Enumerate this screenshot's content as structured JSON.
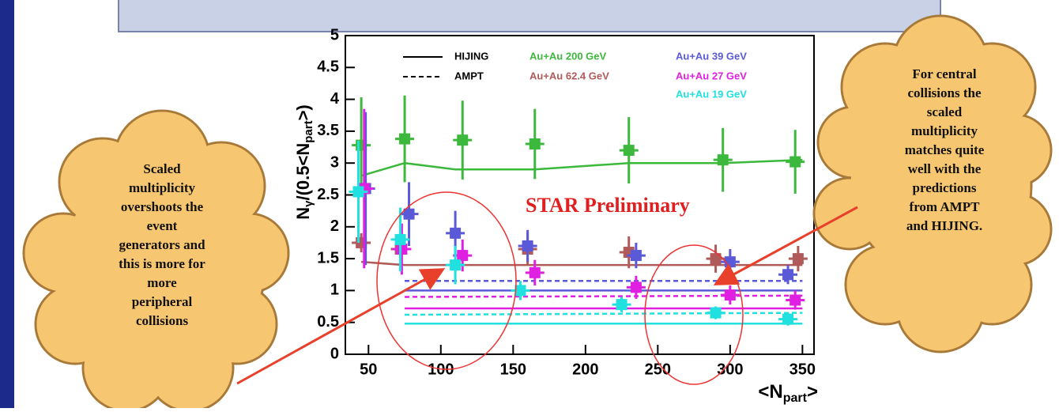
{
  "chart_data": {
    "type": "errorbar",
    "y_label": [
      "N",
      "γ",
      "/(0.5<N",
      "part",
      ">)"
    ],
    "x_label": [
      "<N",
      "part",
      ">"
    ],
    "xlim": [
      34,
      358
    ],
    "ylim": [
      0,
      5
    ],
    "xticks": [
      50,
      100,
      150,
      200,
      250,
      300,
      350
    ],
    "yticks": [
      0,
      0.5,
      1,
      1.5,
      2,
      2.5,
      3,
      3.5,
      4,
      4.5,
      5
    ],
    "models": [
      {
        "name": "HIJING",
        "dash": "solid"
      },
      {
        "name": "AMPT",
        "dash": "dashed"
      }
    ],
    "series": [
      {
        "name": "Au+Au 200 GeV",
        "color": "#3cb83c",
        "x": [
          45,
          75,
          115,
          165,
          230,
          295,
          345
        ],
        "values": [
          3.28,
          3.38,
          3.36,
          3.3,
          3.2,
          3.05,
          3.02
        ],
        "errors": [
          0.75,
          0.68,
          0.62,
          0.55,
          0.52,
          0.5,
          0.5
        ]
      },
      {
        "name": "Au+Au 62.4 GeV",
        "color": "#b05a5a",
        "x": [
          45,
          72,
          160,
          230,
          290,
          347
        ],
        "values": [
          1.75,
          1.65,
          1.65,
          1.6,
          1.5,
          1.5
        ],
        "errors": [
          0.15,
          0.15,
          0.25,
          0.25,
          0.22,
          0.2
        ]
      },
      {
        "name": "Au+Au 39 GeV",
        "color": "#5a5ad8",
        "x": [
          48,
          78,
          110,
          160,
          235,
          300,
          340
        ],
        "values": [
          2.6,
          2.2,
          1.9,
          1.7,
          1.55,
          1.45,
          1.25
        ],
        "errors": [
          1.2,
          0.5,
          0.35,
          0.25,
          0.2,
          0.2,
          0.15
        ]
      },
      {
        "name": "Au+Au 27 GeV",
        "color": "#e020e0",
        "x": [
          47,
          73,
          115,
          165,
          235,
          300,
          345
        ],
        "values": [
          2.6,
          1.65,
          1.55,
          1.28,
          1.05,
          0.93,
          0.85
        ],
        "errors": [
          1.25,
          0.4,
          0.25,
          0.2,
          0.18,
          0.15,
          0.15
        ]
      },
      {
        "name": "Au+Au 19 GeV",
        "color": "#20e0e0",
        "x": [
          43,
          72,
          110,
          155,
          225,
          290,
          340
        ],
        "values": [
          2.55,
          1.8,
          1.4,
          1.0,
          0.78,
          0.65,
          0.55
        ],
        "errors": [
          0.8,
          0.5,
          0.3,
          0.15,
          0.12,
          0.1,
          0.1
        ]
      }
    ],
    "model_curves": [
      {
        "dash": "solid",
        "color": "#3cb83c",
        "x": [
          45,
          75,
          110,
          165,
          230,
          295,
          350
        ],
        "values": [
          2.8,
          3.0,
          2.9,
          2.9,
          3.0,
          3.0,
          3.05
        ]
      },
      {
        "dash": "solid",
        "color": "#b05a5a",
        "x": [
          45,
          75,
          350
        ],
        "values": [
          1.45,
          1.4,
          1.4
        ]
      },
      {
        "dash": "dashed",
        "color": "#5a5ad8",
        "x": [
          75,
          350
        ],
        "values": [
          1.15,
          1.15
        ]
      },
      {
        "dash": "solid",
        "color": "#5a5ad8",
        "x": [
          75,
          350
        ],
        "values": [
          1.0,
          1.0
        ]
      },
      {
        "dash": "dashed",
        "color": "#e020e0",
        "x": [
          75,
          350
        ],
        "values": [
          0.9,
          0.92
        ]
      },
      {
        "dash": "solid",
        "color": "#e020e0",
        "x": [
          75,
          350
        ],
        "values": [
          0.72,
          0.72
        ]
      },
      {
        "dash": "dashed",
        "color": "#20e0e0",
        "x": [
          75,
          350
        ],
        "values": [
          0.62,
          0.65
        ]
      },
      {
        "dash": "solid",
        "color": "#20e0e0",
        "x": [
          75,
          350
        ],
        "values": [
          0.48,
          0.48
        ]
      }
    ],
    "annotation": "STAR Preliminary"
  },
  "callouts": {
    "left": [
      "Scaled",
      "multiplicity",
      "overshoots the",
      "event",
      "generators and",
      "this is more for",
      "more",
      "peripheral",
      "collisions"
    ],
    "right": [
      "For central",
      "collisions the",
      "scaled",
      "multiplicity",
      "matches quite",
      "well with the",
      "predictions",
      "from AMPT",
      "and HIJING."
    ]
  }
}
